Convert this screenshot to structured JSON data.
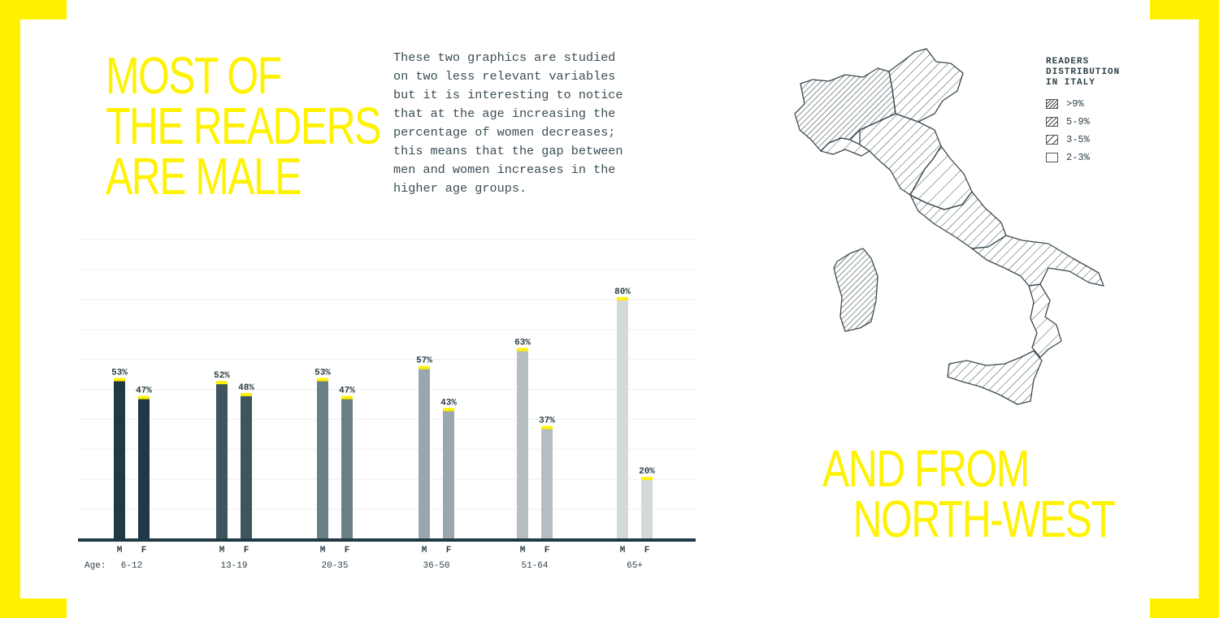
{
  "headline_left": [
    "MOST OF",
    "THE READERS",
    "ARE MALE"
  ],
  "headline_right": [
    "AND FROM",
    "NORTH-WEST"
  ],
  "description": [
    "These two graphics are studied",
    "on two less relevant variables",
    "but it is interesting to notice",
    "that at the age increasing the",
    "percentage of women decreases;",
    "this means that the gap between",
    "men and women increases in the",
    "higher age groups."
  ],
  "colors": {
    "accent": "#fff200",
    "axis": "#1f3a44",
    "groups": [
      "#1f3a44",
      "#3e555d",
      "#6a7f86",
      "#9aa8ad",
      "#b4bec1",
      "#d4d9da"
    ]
  },
  "chart_data": {
    "type": "bar",
    "age_prefix": "Age:",
    "categories": [
      "6-12",
      "13-19",
      "20-35",
      "36-50",
      "51-64",
      "65+"
    ],
    "bar_letters": [
      "M",
      "F"
    ],
    "series": [
      {
        "name": "M",
        "values": [
          53,
          52,
          53,
          57,
          63,
          80
        ]
      },
      {
        "name": "F",
        "values": [
          47,
          48,
          47,
          43,
          37,
          20
        ]
      }
    ],
    "value_labels": {
      "M": [
        "53%",
        "52%",
        "53%",
        "57%",
        "63%",
        "80%"
      ],
      "F": [
        "47%",
        "48%",
        "47%",
        "43%",
        "37%",
        "20%"
      ]
    },
    "ylim": [
      0,
      100
    ],
    "grid": true
  },
  "map": {
    "legend_title": [
      "READERS",
      "DISTRIBUTION",
      "IN ITALY"
    ],
    "legend_items": [
      ">9%",
      "5-9%",
      "3-5%",
      "2-3%"
    ],
    "icon": "italy-map"
  }
}
